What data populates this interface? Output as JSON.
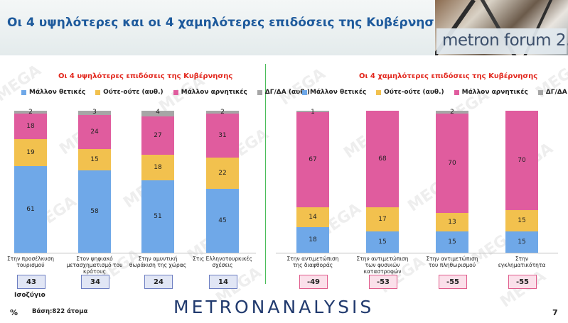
{
  "header": {
    "title": "Οι 4 υψηλότερες και οι 4 χαμηλότερες επιδόσεις της Κυβέρνησης",
    "logo": "metron forum 2.0"
  },
  "watermark": "MEGA",
  "colors": {
    "positive": "#6fa8e8",
    "neutral": "#f2c14e",
    "negative": "#e05c9e",
    "dk": "#a6a6a6",
    "divider": "#4bbd5a",
    "title_red": "#e2261c"
  },
  "legend": [
    "Μάλλον θετικές",
    "Ούτε-ούτε (αυθ.)",
    "Μάλλον αρνητικές",
    "ΔΓ/ΔΑ (αυθ.)"
  ],
  "chart_data": [
    {
      "type": "bar",
      "stacked": true,
      "title": "Οι 4 υψηλότερες επιδόσεις της Κυβέρνησης",
      "categories": [
        "Στην προσέλκυση τουρισμού",
        "Στον ψηφιακό μετασχηματισμό του κράτους",
        "Στην αμυντική θωράκιση της χώρας",
        "Στις Ελληνοτουρκικές σχέσεις"
      ],
      "series": [
        {
          "name": "Μάλλον θετικές",
          "values": [
            61,
            58,
            51,
            45
          ]
        },
        {
          "name": "Ούτε-ούτε (αυθ.)",
          "values": [
            19,
            15,
            18,
            22
          ]
        },
        {
          "name": "Μάλλον αρνητικές",
          "values": [
            18,
            24,
            27,
            31
          ]
        },
        {
          "name": "ΔΓ/ΔΑ (αυθ.)",
          "values": [
            2,
            3,
            4,
            2
          ]
        }
      ],
      "balance": [
        "43",
        "34",
        "24",
        "14"
      ],
      "ylim": [
        0,
        100
      ],
      "legend_position": "top"
    },
    {
      "type": "bar",
      "stacked": true,
      "title": "Οι 4 χαμηλότερες επιδόσεις της Κυβέρνησης",
      "categories": [
        "Στην αντιμετώπιση της διαφθοράς",
        "Στην αντιμετώπιση των φυσικών καταστροφών",
        "Στην αντιμετώπιση του πληθωρισμού",
        "Στην εγκληματικότητα"
      ],
      "series": [
        {
          "name": "Μάλλον θετικές",
          "values": [
            18,
            15,
            15,
            15
          ]
        },
        {
          "name": "Ούτε-ούτε (αυθ.)",
          "values": [
            14,
            17,
            13,
            15
          ]
        },
        {
          "name": "Μάλλον αρνητικές",
          "values": [
            67,
            68,
            70,
            70
          ]
        },
        {
          "name": "ΔΓ/ΔΑ (αυθ.)",
          "values": [
            1,
            null,
            2,
            null
          ]
        }
      ],
      "balance": [
        "-49",
        "-53",
        "-55",
        "-55"
      ],
      "ylim": [
        0,
        100
      ],
      "legend_position": "top"
    }
  ],
  "footer": {
    "balance_label": "Ισοζύγιο",
    "percent": "%",
    "base": "Βάση:822 άτομα",
    "brand_left": "METRON",
    "brand_right": "ANALYSIS",
    "page": "7"
  }
}
